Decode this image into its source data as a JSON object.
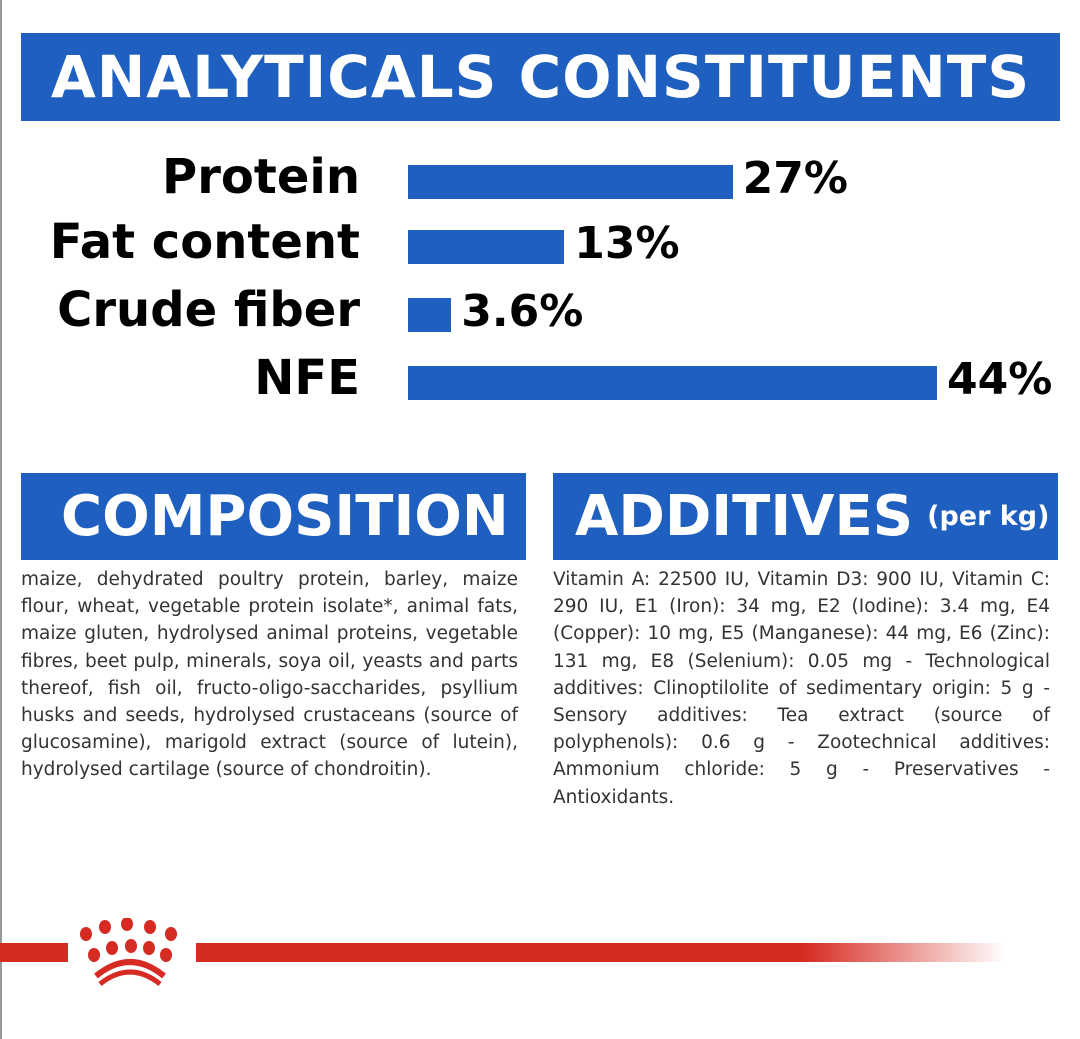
{
  "header": {
    "title": "ANALYTICALS CONSTITUENTS"
  },
  "chart_data": {
    "type": "bar",
    "orientation": "horizontal",
    "title": "ANALYTICALS CONSTITUENTS",
    "categories": [
      "Protein",
      "Fat content",
      "Crude fiber",
      "NFE"
    ],
    "values": [
      27,
      13,
      3.6,
      44
    ],
    "value_labels": [
      "27%",
      "13%",
      "3.6%",
      "44%"
    ],
    "unit": "%",
    "xlim": [
      0,
      44
    ],
    "grid": false,
    "color": "#1f5fbf"
  },
  "composition": {
    "title": "COMPOSITION",
    "text": "maize, dehydrated poultry protein, barley, maize flour, wheat, vegetable protein isolate*, animal fats, maize gluten, hydrolysed animal proteins, vegetable fibres, beet pulp, minerals, soya oil, yeasts and parts thereof, fish oil, fructo-oligo-saccharides, psyllium husks and seeds, hydrolysed crustaceans (source of glucosamine), marigold extract (source of lutein), hydrolysed cartilage (source of chondroitin)."
  },
  "additives": {
    "title": "ADDITIVES",
    "subtitle": "(per kg)",
    "text": "Vitamin A: 22500 IU, Vitamin D3: 900 IU, Vitamin C: 290 IU, E1 (Iron): 34 mg, E2 (Iodine): 3.4 mg, E4 (Copper): 10 mg, E5 (Manganese): 44 mg, E6 (Zinc): 131 mg, E8 (Selenium): 0.05 mg - Technological additives: Clinoptilolite of sedimentary origin: 5 g - Sensory additives: Tea extract (source of polyphenols): 0.6 g - Zootechnical additives: Ammonium chloride: 5 g - Preservatives - Antioxidants."
  },
  "colors": {
    "blue": "#1f5fbf",
    "red": "#d62b22"
  }
}
